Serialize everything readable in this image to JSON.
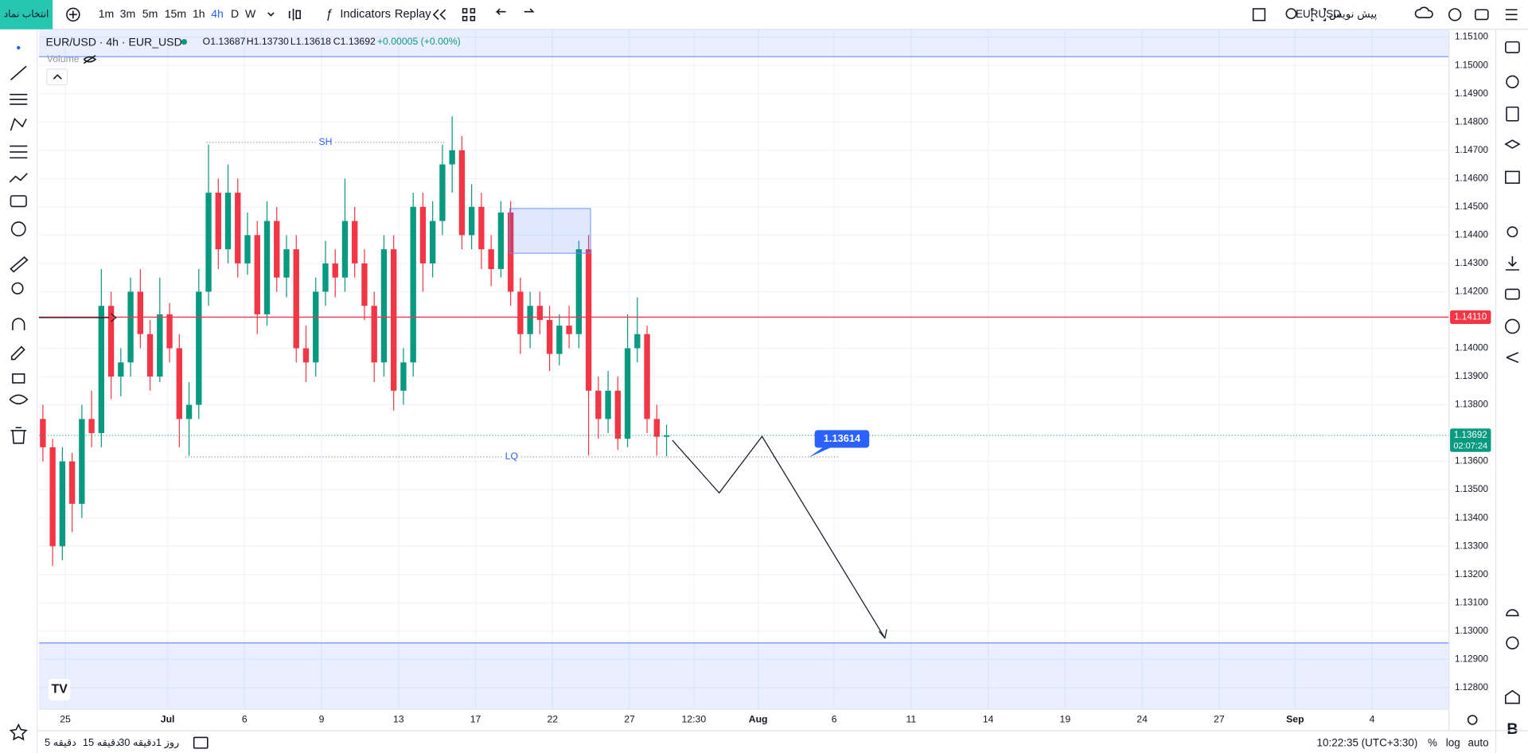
{
  "toolbar": {
    "symbol_button": "انتخاب نماد",
    "timeframes": [
      "1m",
      "3m",
      "5m",
      "15m",
      "1h",
      "4h",
      "D",
      "W"
    ],
    "indicators": "Indicators",
    "replay": "Replay",
    "draft": "پیش نویس",
    "symbol": "EURUSD"
  },
  "header": {
    "title": "EUR/USD · 4h · EUR_USD",
    "open": "O1.13687",
    "high": "H1.13730",
    "low": "L1.13618",
    "close": "C1.13692",
    "change": "+0.00005 (+0.00%)",
    "volume": "Volume"
  },
  "chart_data": {
    "type": "candlestick",
    "up_color": "#089981",
    "down_color": "#f23645",
    "ohlc": [
      [
        1.1375,
        1.138,
        1.136,
        1.1365
      ],
      [
        1.1365,
        1.1368,
        1.1323,
        1.133
      ],
      [
        1.133,
        1.1365,
        1.1325,
        1.136
      ],
      [
        1.136,
        1.1363,
        1.1335,
        1.1345
      ],
      [
        1.1345,
        1.138,
        1.134,
        1.1375
      ],
      [
        1.1375,
        1.1385,
        1.1365,
        1.137
      ],
      [
        1.137,
        1.1428,
        1.1365,
        1.1415
      ],
      [
        1.1415,
        1.142,
        1.1382,
        1.139
      ],
      [
        1.139,
        1.14,
        1.1383,
        1.1395
      ],
      [
        1.1395,
        1.1425,
        1.139,
        1.142
      ],
      [
        1.142,
        1.1428,
        1.14,
        1.1405
      ],
      [
        1.1405,
        1.141,
        1.1385,
        1.139
      ],
      [
        1.139,
        1.1425,
        1.1388,
        1.1412
      ],
      [
        1.1412,
        1.1416,
        1.1395,
        1.14
      ],
      [
        1.14,
        1.1405,
        1.1365,
        1.1375
      ],
      [
        1.1375,
        1.1388,
        1.1362,
        1.138
      ],
      [
        1.138,
        1.1428,
        1.1375,
        1.142
      ],
      [
        1.142,
        1.1472,
        1.1415,
        1.1455
      ],
      [
        1.1455,
        1.146,
        1.1428,
        1.1435
      ],
      [
        1.1435,
        1.1465,
        1.143,
        1.1455
      ],
      [
        1.1455,
        1.146,
        1.1425,
        1.143
      ],
      [
        1.143,
        1.1448,
        1.1426,
        1.144
      ],
      [
        1.144,
        1.1445,
        1.1405,
        1.1412
      ],
      [
        1.1412,
        1.1452,
        1.1408,
        1.1445
      ],
      [
        1.1445,
        1.145,
        1.142,
        1.1425
      ],
      [
        1.1425,
        1.144,
        1.1418,
        1.1435
      ],
      [
        1.1435,
        1.144,
        1.1395,
        1.14
      ],
      [
        1.14,
        1.1408,
        1.1388,
        1.1395
      ],
      [
        1.1395,
        1.1425,
        1.139,
        1.142
      ],
      [
        1.142,
        1.1438,
        1.1415,
        1.143
      ],
      [
        1.143,
        1.1435,
        1.1418,
        1.1425
      ],
      [
        1.1425,
        1.146,
        1.142,
        1.1445
      ],
      [
        1.1445,
        1.145,
        1.1425,
        1.143
      ],
      [
        1.143,
        1.1435,
        1.141,
        1.1415
      ],
      [
        1.1415,
        1.142,
        1.1388,
        1.1395
      ],
      [
        1.1395,
        1.144,
        1.139,
        1.1435
      ],
      [
        1.1435,
        1.144,
        1.1378,
        1.1385
      ],
      [
        1.1385,
        1.14,
        1.138,
        1.1395
      ],
      [
        1.1395,
        1.1455,
        1.139,
        1.145
      ],
      [
        1.145,
        1.1455,
        1.142,
        1.143
      ],
      [
        1.143,
        1.1452,
        1.1425,
        1.1445
      ],
      [
        1.1445,
        1.1472,
        1.144,
        1.1465
      ],
      [
        1.1465,
        1.1482,
        1.1455,
        1.147
      ],
      [
        1.147,
        1.1475,
        1.1435,
        1.144
      ],
      [
        1.144,
        1.1458,
        1.1435,
        1.145
      ],
      [
        1.145,
        1.1455,
        1.1428,
        1.1435
      ],
      [
        1.1435,
        1.144,
        1.1422,
        1.1428
      ],
      [
        1.1428,
        1.1452,
        1.1425,
        1.1448
      ],
      [
        1.1448,
        1.1452,
        1.1415,
        1.142
      ],
      [
        1.142,
        1.1425,
        1.1398,
        1.1405
      ],
      [
        1.1405,
        1.142,
        1.14,
        1.1415
      ],
      [
        1.1415,
        1.142,
        1.1405,
        1.141
      ],
      [
        1.141,
        1.1415,
        1.1392,
        1.1398
      ],
      [
        1.1398,
        1.1412,
        1.1394,
        1.1408
      ],
      [
        1.1408,
        1.1415,
        1.14,
        1.1405
      ],
      [
        1.1405,
        1.1438,
        1.14,
        1.1435
      ],
      [
        1.1435,
        1.144,
        1.1362,
        1.1385
      ],
      [
        1.1385,
        1.139,
        1.1368,
        1.1375
      ],
      [
        1.1375,
        1.1392,
        1.137,
        1.1385
      ],
      [
        1.1385,
        1.139,
        1.1364,
        1.1368
      ],
      [
        1.1368,
        1.1412,
        1.1365,
        1.14
      ],
      [
        1.14,
        1.1418,
        1.1395,
        1.1405
      ],
      [
        1.1405,
        1.1408,
        1.137,
        1.1375
      ],
      [
        1.1375,
        1.138,
        1.1362,
        1.13687
      ],
      [
        1.13687,
        1.1373,
        1.13618,
        1.13692
      ]
    ],
    "ylim": [
      1.12724,
      1.15128
    ],
    "yticks": [
      {
        "value": 1.151,
        "label": "1.15100"
      },
      {
        "value": 1.15,
        "label": "1.15000"
      },
      {
        "value": 1.149,
        "label": "1.14900"
      },
      {
        "value": 1.148,
        "label": "1.14800"
      },
      {
        "value": 1.147,
        "label": "1.14700"
      },
      {
        "value": 1.146,
        "label": "1.14600"
      },
      {
        "value": 1.145,
        "label": "1.14500"
      },
      {
        "value": 1.144,
        "label": "1.14400"
      },
      {
        "value": 1.143,
        "label": "1.14300"
      },
      {
        "value": 1.142,
        "label": "1.14200"
      },
      {
        "value": 1.14,
        "label": "1.14000"
      },
      {
        "value": 1.139,
        "label": "1.13900"
      },
      {
        "value": 1.138,
        "label": "1.13800"
      },
      {
        "value": 1.136,
        "label": "1.13600"
      },
      {
        "value": 1.135,
        "label": "1.13500"
      },
      {
        "value": 1.134,
        "label": "1.13400"
      },
      {
        "value": 1.133,
        "label": "1.13300"
      },
      {
        "value": 1.132,
        "label": "1.13200"
      },
      {
        "value": 1.131,
        "label": "1.13100"
      },
      {
        "value": 1.13,
        "label": "1.13000"
      },
      {
        "value": 1.129,
        "label": "1.12900"
      },
      {
        "value": 1.128,
        "label": "1.12800"
      }
    ],
    "xticks": [
      "25",
      "Jul",
      "6",
      "9",
      "13",
      "17",
      "22",
      "27",
      "12:30",
      "Aug",
      "6",
      "11",
      "14",
      "19",
      "24",
      "27",
      "Sep",
      "4"
    ],
    "grid": true,
    "horizontal_line": {
      "value": 1.1411,
      "label": "1.14110",
      "color": "#f23645"
    },
    "last_price": {
      "value": 1.13692,
      "label": "1.13692",
      "countdown": "02:07:24",
      "color": "#089981"
    },
    "swing_high": {
      "value": 1.14728,
      "label": "SH"
    },
    "liquidity": {
      "value": 1.13616,
      "label": "LQ"
    },
    "zone": [
      1.14494,
      1.14336
    ],
    "target": {
      "value": 1.13614,
      "label": "1.13614"
    },
    "ranges": [
      [
        1.15031,
        1.15128
      ],
      [
        1.12724,
        1.12958
      ]
    ]
  },
  "bottom_bar": {
    "ranges": [
      "5 دقیقه",
      "15 دقیقه",
      "30 دقیقه",
      "1 روز"
    ],
    "clock": "10:22:35 (UTC+3:30)",
    "percent": "%",
    "log": "log",
    "auto": "auto"
  }
}
